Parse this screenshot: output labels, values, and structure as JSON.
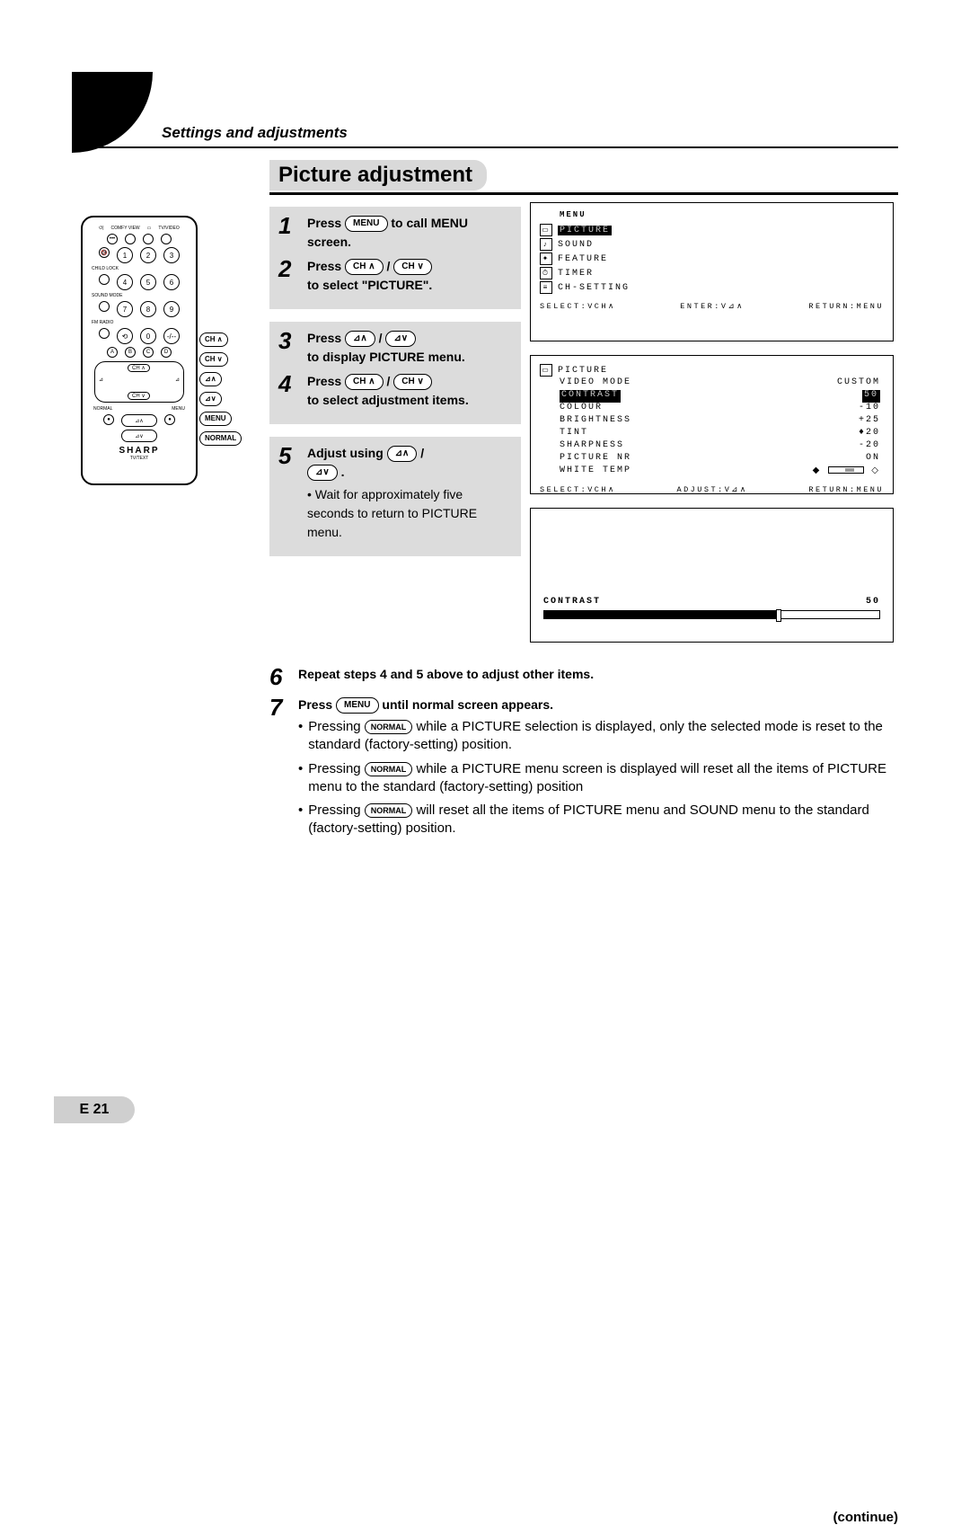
{
  "header": {
    "section": "Settings and adjustments",
    "title": "Picture adjustment"
  },
  "remote": {
    "top_labels": [
      "COMFY VIEW",
      "",
      "TV/VIDEO"
    ],
    "row_childlock": "CHILD LOCK",
    "numbers": [
      "1",
      "2",
      "3",
      "4",
      "5",
      "6",
      "7",
      "8",
      "9",
      "0"
    ],
    "sound_mode": "SOUND MODE",
    "fm_radio": "FM RADIO",
    "letters": [
      "A",
      "B",
      "C",
      "D"
    ],
    "ch_up": "CH ∧",
    "ch_down": "CH ∨",
    "normal": "NORMAL",
    "menu": "MENU",
    "vol_up": "⊿∧",
    "vol_down": "⊿∨",
    "brand": "SHARP",
    "tvtext": "TV/TEXT"
  },
  "callouts": {
    "ch_up": "CH ∧",
    "ch_down": "CH ∨",
    "vol_up": "⊿∧",
    "vol_down": "⊿∨",
    "menu": "MENU",
    "normal": "NORMAL"
  },
  "steps": {
    "s1": "Press",
    "s1_pill": "MENU",
    "s1_tail": "to call MENU screen.",
    "s2": "Press",
    "s2_p1": "CH ∧",
    "s2_p2": "CH ∨",
    "s2_tail": "to select \"PICTURE\".",
    "s3": "Press",
    "s3_p1": "⊿∧",
    "s3_p2": "⊿∨",
    "s3_tail": "to display PICTURE menu.",
    "s4": "Press",
    "s4_p1": "CH ∧",
    "s4_p2": "CH ∨",
    "s4_tail": "to select adjustment items.",
    "s5": "Adjust using",
    "s5_p1": "⊿∧",
    "s5_p2": "⊿∨",
    "s5_note": "Wait for approximately five seconds to return to PICTURE menu.",
    "s6": "Repeat steps 4 and 5 above to adjust other items.",
    "s7": "Press",
    "s7_pill": "MENU",
    "s7_tail": "until normal screen appears.",
    "b1a": "Pressing",
    "b1_pill": "NORMAL",
    "b1b": "while a PICTURE selection is displayed, only the selected mode is reset to the standard (factory-setting) position.",
    "b2a": "Pressing",
    "b2_pill": "NORMAL",
    "b2b": "while a PICTURE menu screen is displayed will reset all the items of PICTURE menu to the standard (factory-setting) position",
    "b3a": "Pressing",
    "b3_pill": "NORMAL",
    "b3b": "will reset all the items of PICTURE menu and SOUND menu to the standard (factory-setting) position.",
    "continue": "(continue)"
  },
  "osd1": {
    "title": "MENU",
    "items": [
      "PICTURE",
      "SOUND",
      "FEATURE",
      "TIMER",
      "CH-SETTING"
    ],
    "footer": {
      "left": "SELECT:VCH∧",
      "mid": "ENTER:V⊿∧",
      "right": "RETURN:MENU"
    }
  },
  "osd2": {
    "title": "PICTURE",
    "rows": [
      {
        "k": "VIDEO MODE",
        "v": "CUSTOM"
      },
      {
        "k": "CONTRAST",
        "v": "50",
        "sel": true
      },
      {
        "k": "COLOUR",
        "v": "-10"
      },
      {
        "k": "BRIGHTNESS",
        "v": "+25"
      },
      {
        "k": "TINT",
        "v": "♦20"
      },
      {
        "k": "SHARPNESS",
        "v": "-20"
      },
      {
        "k": "PICTURE NR",
        "v": "ON"
      },
      {
        "k": "WHITE TEMP",
        "v": "bar"
      }
    ],
    "footer": {
      "left": "SELECT:VCH∧",
      "mid": "ADJUST:V⊿∧",
      "right": "RETURN:MENU"
    }
  },
  "osd3": {
    "label": "CONTRAST",
    "value": "50",
    "fill_pct": 70
  },
  "page_number": "E 21"
}
